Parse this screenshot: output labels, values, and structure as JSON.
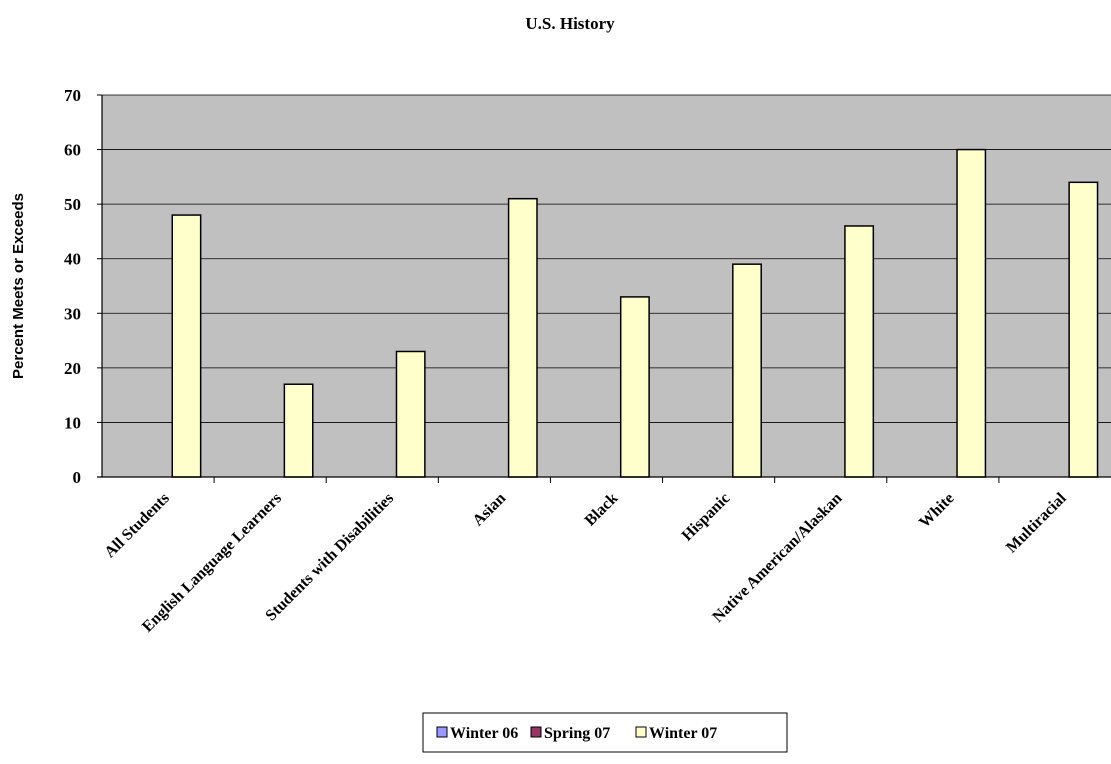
{
  "chart_data": {
    "type": "bar",
    "title": "U.S. History",
    "xlabel": "",
    "ylabel": "Percent Meets or Exceeds",
    "ylim": [
      0,
      70
    ],
    "yticks": [
      0,
      10,
      20,
      30,
      40,
      50,
      60,
      70
    ],
    "grid": true,
    "legend_position": "bottom",
    "categories": [
      "All Students",
      "English Language Learners",
      "Students with Disabilities",
      "Asian",
      "Black",
      "Hispanic",
      "Native American/Alaskan",
      "White",
      "Multiracial"
    ],
    "series": [
      {
        "name": "Winter 06",
        "color": "#9999ff",
        "values": [
          null,
          null,
          null,
          null,
          null,
          null,
          null,
          null,
          null
        ]
      },
      {
        "name": "Spring 07",
        "color": "#993366",
        "values": [
          null,
          null,
          null,
          null,
          null,
          null,
          null,
          null,
          null
        ]
      },
      {
        "name": "Winter 07",
        "color": "#ffffcc",
        "values": [
          48,
          17,
          23,
          51,
          33,
          39,
          46,
          60,
          54
        ]
      }
    ]
  }
}
